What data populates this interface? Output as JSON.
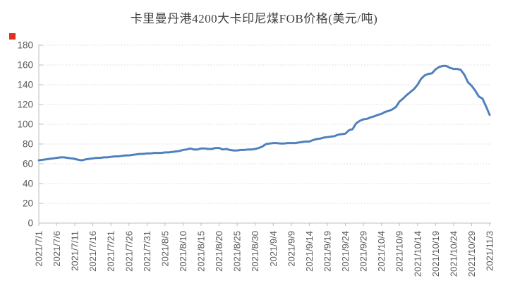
{
  "colors": {
    "line": "#4f81bd",
    "grid": "#d8d8d8",
    "axis": "#bfbfbf",
    "tick_text": "#595959",
    "title_text": "#3f3f3f",
    "marker_red": "#e0301e",
    "background": "#ffffff"
  },
  "chart_data": {
    "type": "line",
    "title": "卡里曼丹港4200大卡印尼煤FOB价格(美元/吨)",
    "xlabel": "",
    "ylabel": "",
    "ylim": [
      0,
      180
    ],
    "ytick_step": 20,
    "grid": "horizontal dotted",
    "legend": "none",
    "x_interval": "daily",
    "x_first": "2021/7/1",
    "x_last": "2021/11/3",
    "x_tick_labels": [
      "2021/7/1",
      "2021/7/6",
      "2021/7/11",
      "2021/7/16",
      "2021/7/21",
      "2021/7/26",
      "2021/7/31",
      "2021/8/5",
      "2021/8/10",
      "2021/8/15",
      "2021/8/20",
      "2021/8/25",
      "2021/8/30",
      "2021/9/4",
      "2021/9/9",
      "2021/9/14",
      "2021/9/19",
      "2021/9/24",
      "2021/9/29",
      "2021/10/4",
      "2021/10/9",
      "2021/10/14",
      "2021/10/19",
      "2021/10/24",
      "2021/10/29",
      "2021/11/3"
    ],
    "values": [
      63.5,
      64,
      64.5,
      65,
      65.5,
      66,
      66.5,
      66.5,
      66,
      65.5,
      65,
      64,
      63.5,
      64.5,
      65,
      65.5,
      66,
      66,
      66.5,
      66.5,
      67,
      67.5,
      67.5,
      68,
      68.5,
      68.5,
      69,
      69.5,
      70,
      70,
      70.5,
      70.5,
      71,
      71,
      71,
      71.5,
      71.5,
      72,
      72.5,
      73,
      74,
      74.5,
      75.5,
      74.5,
      74.5,
      75.5,
      75.5,
      75,
      75,
      76,
      76,
      74.5,
      75,
      74,
      73.5,
      73.5,
      74,
      74,
      74.5,
      74.5,
      75,
      76,
      77.5,
      80,
      80.5,
      81,
      81,
      80.5,
      80.5,
      81,
      81,
      81,
      81.5,
      82,
      82.5,
      82.5,
      84,
      85,
      85.5,
      86.5,
      87,
      87.5,
      88,
      89.5,
      90,
      90.5,
      94,
      95,
      101,
      103.5,
      105,
      105.5,
      107,
      108,
      109.5,
      110.5,
      112.5,
      113.5,
      115,
      117.5,
      123,
      126,
      129.5,
      132.5,
      135.5,
      140,
      146,
      149.5,
      151,
      151.5,
      155.5,
      158,
      159,
      159,
      157,
      156,
      156,
      155,
      150,
      142.5,
      139,
      134,
      128,
      126,
      118,
      109.5
    ]
  }
}
